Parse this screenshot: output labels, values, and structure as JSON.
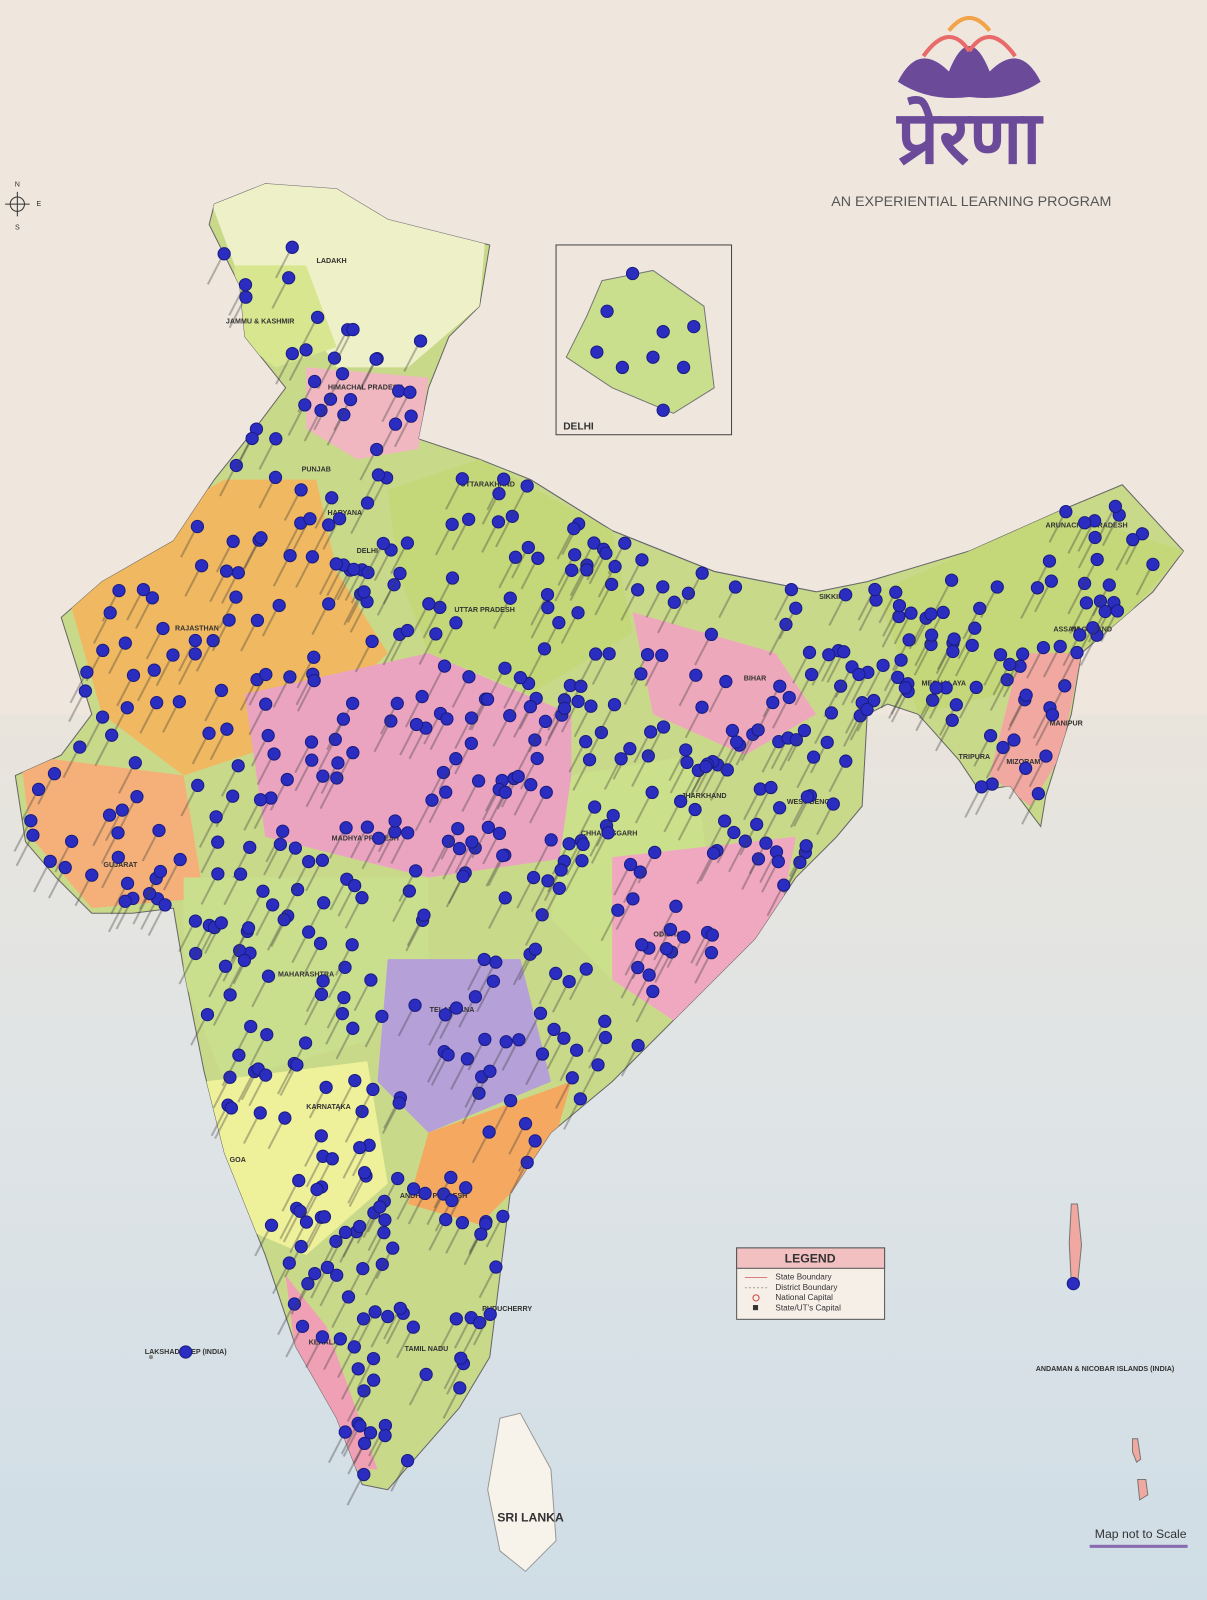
{
  "header": {
    "title": "प्रेरणा",
    "subtitle": "AN EXPERIENTIAL LEARNING PROGRAM"
  },
  "compass": {
    "n": "N",
    "e": "E",
    "s": "S"
  },
  "inset": {
    "label": "DELHI"
  },
  "map": {
    "labels": [
      "LADAKH",
      "JAMMU & KASHMIR",
      "HIMACHAL PRADESH",
      "PUNJAB",
      "UTTARAKHAND",
      "HARYANA",
      "DELHI",
      "RAJASTHAN",
      "UTTAR PRADESH",
      "BIHAR",
      "GUJARAT",
      "MADHYA PRADESH",
      "JHARKHAND",
      "WEST BENGAL",
      "CHHATTISGARH",
      "ODISHA",
      "MAHARASHTRA",
      "TELANGANA",
      "KARNATAKA",
      "GOA",
      "ANDHRA PRADESH",
      "KERALA",
      "TAMIL NADU",
      "PUDUCHERRY",
      "ARUNACHAL PRADESH",
      "ASSAM",
      "NAGALAND",
      "MEGHALAYA",
      "MANIPUR",
      "TRIPURA",
      "MIZORAM",
      "SIKKIM",
      "SRI LANKA",
      "LAKSHADWEEP (INDIA)",
      "ANDAMAN & NICOBAR ISLANDS (INDIA)"
    ]
  },
  "legend": {
    "title": "LEGEND",
    "items": [
      "State Boundary",
      "District Boundary",
      "National Capital",
      "State/UT's Capital"
    ]
  },
  "note": "Map not to Scale"
}
